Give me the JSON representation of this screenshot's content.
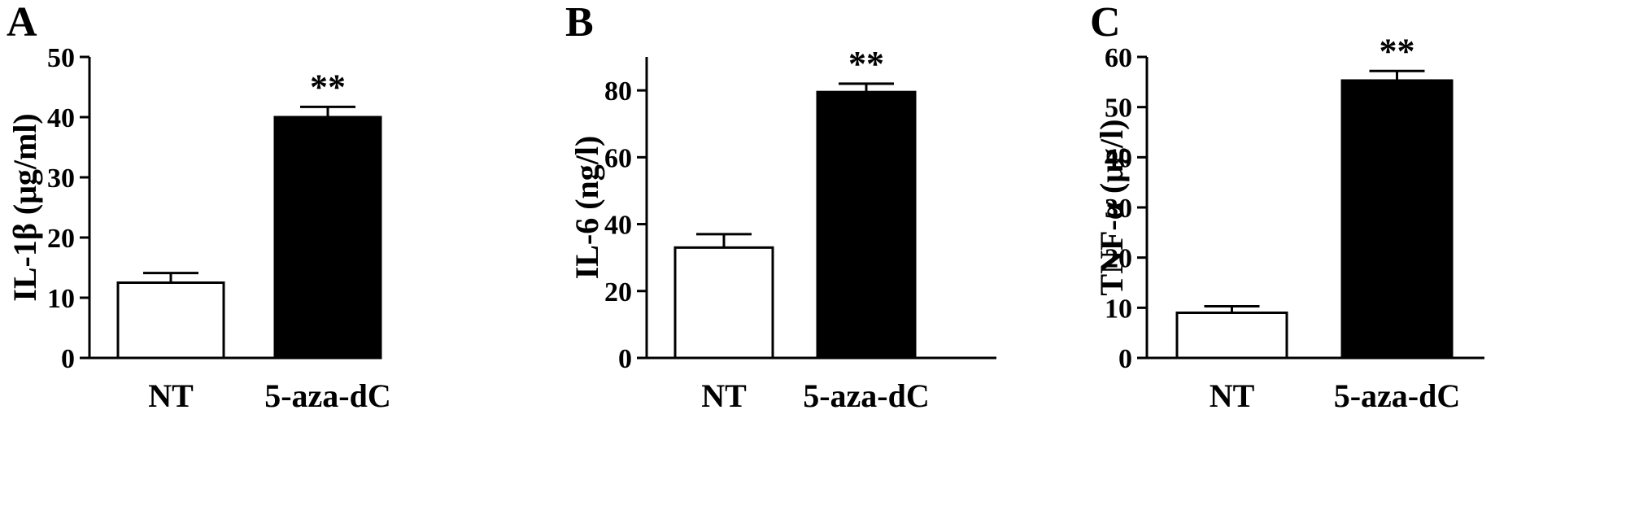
{
  "chart_data": [
    {
      "type": "bar",
      "panel": "A",
      "ylabel": "IL-1β (μg/ml)",
      "categories": [
        "NT",
        "5-aza-dC"
      ],
      "values": [
        12.5,
        40.0
      ],
      "errors": [
        1.6,
        1.7
      ],
      "significance": [
        "",
        "**"
      ],
      "bar_colors": [
        "#ffffff",
        "#000000"
      ],
      "ylim": [
        0,
        50
      ],
      "yticks": [
        0,
        10,
        20,
        30,
        40,
        50
      ],
      "grid": false
    },
    {
      "type": "bar",
      "panel": "B",
      "ylabel": "IL-6 (ng/l)",
      "categories": [
        "NT",
        "5-aza-dC"
      ],
      "values": [
        33.0,
        79.5
      ],
      "errors": [
        4.0,
        2.5
      ],
      "significance": [
        "",
        "**"
      ],
      "bar_colors": [
        "#ffffff",
        "#000000"
      ],
      "ylim": [
        0,
        90
      ],
      "yticks": [
        0,
        20,
        40,
        60,
        80
      ],
      "grid": false
    },
    {
      "type": "bar",
      "panel": "C",
      "ylabel": "TNF-α (μg/l)",
      "categories": [
        "NT",
        "5-aza-dC"
      ],
      "values": [
        9.0,
        55.3
      ],
      "errors": [
        1.3,
        1.9
      ],
      "significance": [
        "",
        "**"
      ],
      "bar_colors": [
        "#ffffff",
        "#000000"
      ],
      "ylim": [
        0,
        60
      ],
      "yticks": [
        0,
        10,
        20,
        30,
        40,
        50,
        60
      ],
      "grid": false
    }
  ]
}
